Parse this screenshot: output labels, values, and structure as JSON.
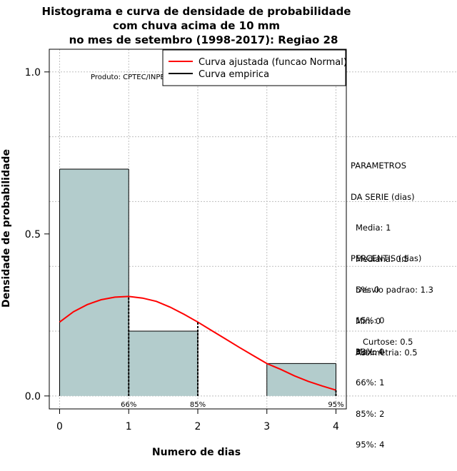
{
  "chart_data": {
    "type": "histogram",
    "title_lines": [
      "Histograma e curva de densidade de probabilidade",
      "com chuva acima de 10 mm",
      "no mes de setembro (1998-2017): Regiao 28"
    ],
    "xlabel": "Numero de dias",
    "ylabel": "Densidade de probabilidade",
    "xlim": [
      -0.15,
      4.15
    ],
    "ylim": [
      -0.04,
      1.07
    ],
    "x_ticks": [
      "0",
      "1",
      "2",
      "3",
      "4"
    ],
    "y_ticks": [
      "0.0",
      "0.5",
      "1.0"
    ],
    "grid": true,
    "credit": "Produto: CPTEC/INPE",
    "bars": [
      {
        "x0": 0,
        "x1": 1,
        "value": 0.7
      },
      {
        "x0": 1,
        "x1": 2,
        "value": 0.2
      },
      {
        "x0": 2,
        "x1": 3,
        "value": 0.0
      },
      {
        "x0": 3,
        "x1": 4,
        "value": 0.1
      }
    ],
    "series": [
      {
        "name": "Curva ajustada (funcao Normal)",
        "color": "#ff0000",
        "x": [
          0,
          0.2,
          0.4,
          0.6,
          0.8,
          1.0,
          1.2,
          1.4,
          1.6,
          1.8,
          2.0,
          2.2,
          2.4,
          2.6,
          2.8,
          3.0,
          3.2,
          3.4,
          3.6,
          3.8,
          4.0
        ],
        "y": [
          0.228,
          0.26,
          0.282,
          0.297,
          0.305,
          0.307,
          0.302,
          0.292,
          0.274,
          0.252,
          0.228,
          0.202,
          0.176,
          0.15,
          0.125,
          0.1,
          0.082,
          0.062,
          0.045,
          0.031,
          0.018
        ]
      },
      {
        "name": "Curva empirica",
        "color": "#000000"
      }
    ],
    "percentile_marks": [
      {
        "x": 1,
        "label": "66%"
      },
      {
        "x": 2,
        "label": "85%"
      },
      {
        "x": 4,
        "label": "95%"
      }
    ],
    "legend_position": "top-right",
    "colors": {
      "bar_fill": "#b3cccc",
      "grid": "#bfbfbf"
    }
  },
  "stats": {
    "param_title_1": "PARAMETROS",
    "param_title_2": "DA SERIE (dias)",
    "media": "Media: 1",
    "mediana": "Mediana: 0.5",
    "desvio": "Desvio padrao: 1.3",
    "min": "Min: 0",
    "max": "Max: 4",
    "perc_title": "PERCENTIS (dias)",
    "p5": "5%: 0",
    "p15": "15%: 0",
    "p33": "33%: 0",
    "p66": "66%: 1",
    "p85": "85%: 2",
    "p95": "95%: 4",
    "curtose": "Curtose: 0.5",
    "assimetria": "Assimetria: 0.5"
  }
}
